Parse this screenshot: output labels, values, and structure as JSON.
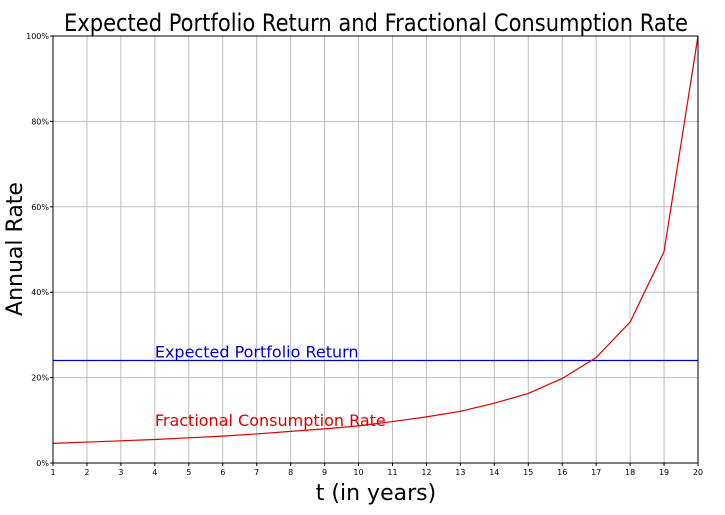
{
  "chart_data": {
    "type": "line",
    "title": "Expected Portfolio Return and Fractional Consumption Rate",
    "xlabel": "t (in years)",
    "ylabel": "Annual Rate",
    "xlim": [
      1,
      20
    ],
    "ylim": [
      0,
      1
    ],
    "x_ticks": [
      1,
      2,
      3,
      4,
      5,
      6,
      7,
      8,
      9,
      10,
      11,
      12,
      13,
      14,
      15,
      16,
      17,
      18,
      19,
      20
    ],
    "y_ticks": [
      0,
      0.2,
      0.4,
      0.6,
      0.8,
      1.0
    ],
    "y_tick_labels": [
      "0%",
      "20%",
      "40%",
      "60%",
      "80%",
      "100%"
    ],
    "grid": true,
    "legend": "none",
    "series": [
      {
        "name": "Expected Portfolio Return",
        "color": "#0000cc",
        "x": [
          1,
          20
        ],
        "values": [
          0.24,
          0.24
        ],
        "label": {
          "text": "Expected Portfolio Return",
          "x": 4,
          "y": 0.247
        }
      },
      {
        "name": "Fractional Consumption Rate",
        "color": "#dd0000",
        "x": [
          1,
          2,
          3,
          4,
          5,
          6,
          7,
          8,
          9,
          10,
          11,
          12,
          13,
          14,
          15,
          16,
          17,
          18,
          19,
          20
        ],
        "values": [
          0.046,
          0.049,
          0.052,
          0.055,
          0.059,
          0.063,
          0.068,
          0.074,
          0.08,
          0.087,
          0.097,
          0.108,
          0.121,
          0.14,
          0.163,
          0.198,
          0.247,
          0.33,
          0.495,
          1.0
        ],
        "label": {
          "text": "Fractional Consumption Rate",
          "x": 4,
          "y": 0.087
        }
      }
    ]
  }
}
